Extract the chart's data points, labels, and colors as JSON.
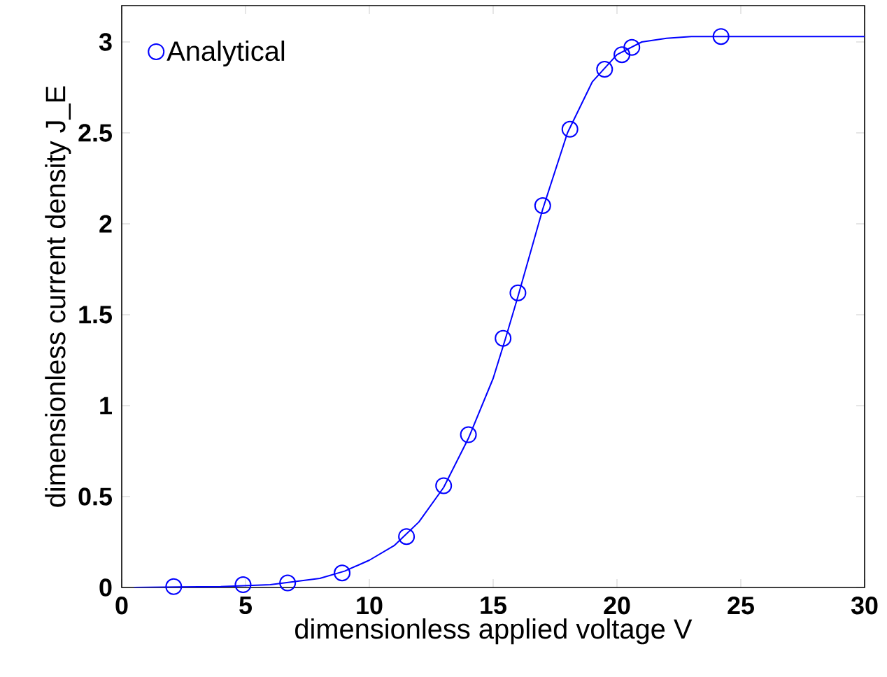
{
  "chart_data": {
    "type": "line",
    "xlabel": "dimensionless applied voltage V",
    "ylabel": "dimensionless current density J_E",
    "xlim": [
      0,
      30
    ],
    "ylim": [
      0,
      3.2
    ],
    "xticks": [
      0,
      5,
      10,
      15,
      20,
      25,
      30
    ],
    "yticks": [
      0,
      0.5,
      1,
      1.5,
      2,
      2.5,
      3
    ],
    "legend": "top left",
    "grid": false,
    "series": [
      {
        "name": "Analytical",
        "type": "scatter",
        "marker": "circle",
        "color": "#0000ff",
        "x": [
          2.1,
          4.9,
          6.7,
          8.9,
          11.5,
          13,
          14,
          15.4,
          16,
          17,
          18.1,
          19.5,
          20.2,
          20.6,
          24.2
        ],
        "values": [
          0.005,
          0.015,
          0.025,
          0.08,
          0.28,
          0.56,
          0.84,
          1.37,
          1.62,
          2.1,
          2.52,
          2.85,
          2.93,
          2.97,
          3.03
        ]
      },
      {
        "line_style": "solid",
        "color": "#0000ff",
        "x": [
          0.5,
          4,
          6,
          8,
          9,
          10,
          11,
          12,
          13,
          14,
          15,
          15.5,
          16,
          17,
          18,
          19,
          20,
          21,
          22,
          23,
          30
        ],
        "values": [
          0,
          0.005,
          0.015,
          0.05,
          0.09,
          0.15,
          0.23,
          0.36,
          0.55,
          0.82,
          1.15,
          1.37,
          1.6,
          2.08,
          2.5,
          2.78,
          2.93,
          3.0,
          3.02,
          3.03,
          3.03
        ]
      }
    ]
  }
}
